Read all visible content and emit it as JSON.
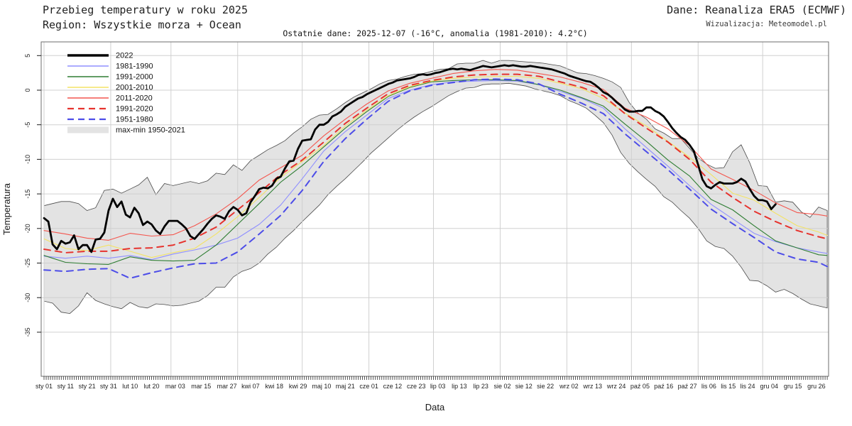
{
  "header": {
    "title": "Przebieg temperatury w roku 2025",
    "subtitle": "Region: Wszystkie morza + Ocean",
    "source": "Dane: Reanaliza ERA5 (ECMWF)",
    "credit": "Wizualizacja: Meteomodel.pl",
    "last_data_note": "Ostatnie dane: 2025-12-07 (-16°C, anomalia (1981-2010): 4.2°C)"
  },
  "chart_data": {
    "type": "line",
    "title": "Przebieg temperatury w roku 2025",
    "subtitle": "Region: Wszystkie morza + Ocean",
    "xlabel": "Data",
    "ylabel": "Temperatura",
    "ylim": [
      -41.5,
      7.0
    ],
    "grid": true,
    "legend_position": "top-left",
    "colors": {
      "grid": "#d0d0d0",
      "box": "#6e6e6e",
      "tick": "#1a1a1a",
      "band_fill": "#e3e3e3",
      "band_edge": "#4a4a4a"
    },
    "y_ticks": [
      5,
      0,
      -5,
      -10,
      -15,
      -20,
      -25,
      -30,
      -35
    ],
    "month_start_days": [
      1,
      32,
      60,
      91,
      121,
      152,
      182,
      213,
      244,
      274,
      305,
      335
    ],
    "x_ticks": [
      {
        "label": "sty 01",
        "day": 1
      },
      {
        "label": "sty 11",
        "day": 11
      },
      {
        "label": "sty 21",
        "day": 21
      },
      {
        "label": "sty 31",
        "day": 31
      },
      {
        "label": "lut 10",
        "day": 41
      },
      {
        "label": "lut 20",
        "day": 51
      },
      {
        "label": "mar 03",
        "day": 62
      },
      {
        "label": "mar 15",
        "day": 74
      },
      {
        "label": "mar 27",
        "day": 86
      },
      {
        "label": "kwi 07",
        "day": 97
      },
      {
        "label": "kwi 18",
        "day": 108
      },
      {
        "label": "kwi 29",
        "day": 119
      },
      {
        "label": "maj 10",
        "day": 130
      },
      {
        "label": "maj 21",
        "day": 141
      },
      {
        "label": "cze 01",
        "day": 152
      },
      {
        "label": "cze 12",
        "day": 163
      },
      {
        "label": "cze 23",
        "day": 174
      },
      {
        "label": "lip 03",
        "day": 184
      },
      {
        "label": "lip 13",
        "day": 194
      },
      {
        "label": "lip 23",
        "day": 204
      },
      {
        "label": "sie 02",
        "day": 214
      },
      {
        "label": "sie 12",
        "day": 224
      },
      {
        "label": "sie 22",
        "day": 234
      },
      {
        "label": "wrz 02",
        "day": 245
      },
      {
        "label": "wrz 13",
        "day": 256
      },
      {
        "label": "wrz 24",
        "day": 267
      },
      {
        "label": "paź 05",
        "day": 278
      },
      {
        "label": "paź 16",
        "day": 289
      },
      {
        "label": "paź 27",
        "day": 300
      },
      {
        "label": "lis 06",
        "day": 310
      },
      {
        "label": "lis 15",
        "day": 319
      },
      {
        "label": "lis 24",
        "day": 328
      },
      {
        "label": "gru 04",
        "day": 338
      },
      {
        "label": "gru 15",
        "day": 349
      },
      {
        "label": "gru 26",
        "day": 360
      }
    ],
    "clim_x": [
      1,
      11,
      21,
      31,
      41,
      51,
      61,
      71,
      81,
      91,
      101,
      111,
      121,
      131,
      141,
      151,
      161,
      171,
      181,
      191,
      201,
      211,
      221,
      231,
      241,
      251,
      261,
      271,
      281,
      291,
      301,
      311,
      321,
      331,
      341,
      351,
      361,
      365
    ],
    "band": {
      "name": "max-min 1950-2021",
      "x_start": 1,
      "x_step": 4,
      "upper": [
        -16.7,
        -16.4,
        -16.1,
        -16.1,
        -16.4,
        -17.4,
        -17.0,
        -14.5,
        -14.3,
        -14.9,
        -14.3,
        -13.7,
        -12.6,
        -15.1,
        -13.5,
        -13.8,
        -13.5,
        -13.2,
        -13.5,
        -13.1,
        -12.0,
        -12.2,
        -10.8,
        -11.6,
        -10.2,
        -9.4,
        -8.6,
        -8.0,
        -7.3,
        -6.2,
        -5.3,
        -4.2,
        -3.6,
        -3.5,
        -2.7,
        -1.8,
        -1.0,
        -0.4,
        0.2,
        0.9,
        1.4,
        1.6,
        2.0,
        2.3,
        2.4,
        2.7,
        3.0,
        3.1,
        3.8,
        3.9,
        3.9,
        4.3,
        3.9,
        4.3,
        4.3,
        4.2,
        4.1,
        4.0,
        3.9,
        3.7,
        3.5,
        3.0,
        2.5,
        2.4,
        2.1,
        1.7,
        1.2,
        0.4,
        -1.8,
        -3.3,
        -4.2,
        -5.6,
        -6.2,
        -7.0,
        -7.0,
        -8.4,
        -9.8,
        -10.7,
        -11.3,
        -11.2,
        -8.9,
        -7.9,
        -10.5,
        -13.8,
        -13.9,
        -16.2,
        -16.0,
        -16.2,
        -17.6,
        -18.4,
        -16.9,
        -17.4
      ],
      "lower": [
        -30.5,
        -30.8,
        -32.1,
        -32.3,
        -31.2,
        -29.3,
        -30.4,
        -30.9,
        -31.3,
        -31.6,
        -30.7,
        -31.3,
        -31.5,
        -30.9,
        -31.0,
        -31.2,
        -31.1,
        -30.8,
        -30.5,
        -29.7,
        -28.5,
        -28.5,
        -27.0,
        -26.2,
        -25.8,
        -25.0,
        -23.7,
        -22.7,
        -21.4,
        -20.3,
        -19.0,
        -17.8,
        -16.6,
        -15.1,
        -13.9,
        -12.8,
        -11.6,
        -10.4,
        -9.1,
        -8.0,
        -6.9,
        -5.8,
        -4.8,
        -3.9,
        -3.1,
        -2.4,
        -1.6,
        -0.8,
        -0.2,
        0.3,
        0.4,
        0.8,
        0.9,
        0.9,
        1.0,
        0.8,
        0.6,
        0.2,
        -0.1,
        -0.4,
        -0.8,
        -1.5,
        -2.0,
        -2.6,
        -3.6,
        -4.7,
        -6.5,
        -9.0,
        -10.6,
        -11.8,
        -12.9,
        -13.9,
        -15.4,
        -16.2,
        -17.4,
        -18.5,
        -20.0,
        -21.8,
        -22.6,
        -22.9,
        -24.0,
        -25.6,
        -27.5,
        -27.6,
        -28.3,
        -29.2,
        -28.8,
        -29.4,
        -30.2,
        -30.9,
        -31.2,
        -31.5
      ]
    },
    "series": [
      {
        "name": "1981-1990",
        "color": "#8f8fff",
        "width": 1.1,
        "dash": null,
        "use_clim_x": true,
        "values": [
          -24.0,
          -24.3,
          -24.0,
          -24.3,
          -23.9,
          -24.5,
          -23.7,
          -23.1,
          -22.4,
          -21.4,
          -19.4,
          -16.6,
          -12.8,
          -8.8,
          -6.0,
          -3.6,
          -1.2,
          0.0,
          0.8,
          1.2,
          1.3,
          1.4,
          1.3,
          0.8,
          -0.2,
          -1.2,
          -2.6,
          -5.6,
          -8.3,
          -11.0,
          -13.8,
          -16.5,
          -18.6,
          -20.7,
          -21.9,
          -22.8,
          -23.4,
          -23.6
        ]
      },
      {
        "name": "1991-2000",
        "color": "#2e7d32",
        "width": 1.1,
        "dash": null,
        "use_clim_x": true,
        "values": [
          -23.9,
          -24.9,
          -25.1,
          -25.2,
          -24.1,
          -24.6,
          -24.7,
          -24.6,
          -22.4,
          -19.4,
          -16.4,
          -13.3,
          -10.9,
          -8.2,
          -5.5,
          -3.1,
          -0.9,
          0.4,
          1.2,
          1.4,
          1.5,
          1.5,
          1.4,
          0.8,
          0.0,
          -1.1,
          -2.3,
          -4.9,
          -7.4,
          -10.1,
          -12.4,
          -15.8,
          -17.3,
          -19.6,
          -21.8,
          -22.8,
          -23.8,
          -23.9
        ]
      },
      {
        "name": "2001-2010",
        "color": "#f3e366",
        "width": 1.1,
        "dash": null,
        "use_clim_x": true,
        "values": [
          -21.5,
          -22.9,
          -23.2,
          -22.4,
          -23.3,
          -24.2,
          -23.5,
          -22.9,
          -20.8,
          -18.3,
          -15.5,
          -12.6,
          -10.3,
          -8.0,
          -5.2,
          -2.9,
          -0.8,
          0.5,
          1.3,
          1.7,
          1.9,
          2.0,
          2.0,
          1.7,
          1.0,
          0.2,
          -1.2,
          -3.3,
          -5.2,
          -7.4,
          -9.7,
          -12.2,
          -14.9,
          -15.9,
          -17.8,
          -19.6,
          -20.5,
          -21.0
        ]
      },
      {
        "name": "2011-2020",
        "color": "#f4564e",
        "width": 1.1,
        "dash": null,
        "use_clim_x": true,
        "values": [
          -20.3,
          -20.8,
          -21.4,
          -21.7,
          -20.7,
          -21.1,
          -20.9,
          -19.6,
          -17.9,
          -15.7,
          -13.0,
          -11.2,
          -9.4,
          -6.6,
          -4.2,
          -2.0,
          -0.1,
          1.0,
          1.7,
          2.4,
          2.8,
          3.0,
          2.9,
          2.4,
          1.9,
          1.1,
          0.1,
          -2.6,
          -3.9,
          -5.6,
          -8.0,
          -11.4,
          -12.9,
          -14.5,
          -16.3,
          -17.7,
          -18.0,
          -18.2
        ]
      },
      {
        "name": "1991-2020",
        "color": "#e6332e",
        "width": 2.0,
        "dash": "9 7",
        "use_clim_x": true,
        "values": [
          -23.0,
          -23.5,
          -23.3,
          -23.3,
          -22.9,
          -22.8,
          -22.4,
          -21.4,
          -19.8,
          -17.3,
          -14.8,
          -12.2,
          -10.1,
          -7.5,
          -4.8,
          -2.6,
          -0.5,
          0.7,
          1.4,
          1.9,
          2.2,
          2.3,
          2.3,
          2.0,
          1.2,
          0.4,
          -0.8,
          -3.4,
          -5.5,
          -7.5,
          -10.0,
          -13.3,
          -15.5,
          -17.5,
          -19.0,
          -20.3,
          -21.2,
          -21.5
        ]
      },
      {
        "name": "1951-1980",
        "color": "#4d4de8",
        "width": 2.0,
        "dash": "9 7",
        "use_clim_x": true,
        "values": [
          -26.0,
          -26.2,
          -25.9,
          -25.8,
          -27.2,
          -26.4,
          -25.7,
          -25.1,
          -25.0,
          -23.4,
          -20.8,
          -18.1,
          -14.5,
          -10.3,
          -7.0,
          -4.2,
          -1.6,
          -0.1,
          0.7,
          1.1,
          1.5,
          1.6,
          1.5,
          0.9,
          -0.6,
          -1.9,
          -3.4,
          -6.3,
          -8.9,
          -11.5,
          -14.3,
          -17.2,
          -19.3,
          -21.3,
          -23.4,
          -24.4,
          -24.9,
          -25.5
        ]
      },
      {
        "name": "2022",
        "color": "#000000",
        "width": 2.8,
        "dash": null,
        "x_start": 1,
        "x_step": 2,
        "values": [
          -18.5,
          -19.0,
          -22.3,
          -23.0,
          -21.8,
          -22.2,
          -22.0,
          -21.0,
          -23.0,
          -22.4,
          -22.4,
          -23.4,
          -21.6,
          -21.5,
          -20.6,
          -17.4,
          -15.7,
          -16.9,
          -16.1,
          -18.0,
          -18.4,
          -17.0,
          -17.8,
          -19.5,
          -19.0,
          -19.4,
          -20.3,
          -20.8,
          -19.7,
          -18.9,
          -18.9,
          -18.9,
          -19.4,
          -20.0,
          -21.1,
          -21.5,
          -20.8,
          -20.1,
          -19.3,
          -18.6,
          -18.1,
          -18.3,
          -18.6,
          -17.5,
          -16.9,
          -17.3,
          -18.1,
          -17.8,
          -16.2,
          -15.3,
          -14.3,
          -14.1,
          -14.2,
          -13.8,
          -12.8,
          -12.5,
          -11.3,
          -10.3,
          -10.2,
          -8.5,
          -7.3,
          -7.2,
          -7.1,
          -5.7,
          -5.0,
          -5.0,
          -4.6,
          -3.8,
          -3.5,
          -3.1,
          -2.4,
          -2.0,
          -1.6,
          -1.2,
          -1.0,
          -0.6,
          -0.3,
          0.0,
          0.3,
          0.6,
          0.9,
          1.1,
          1.4,
          1.5,
          1.6,
          1.7,
          1.9,
          2.2,
          2.3,
          2.2,
          2.3,
          2.5,
          2.6,
          2.8,
          3.0,
          3.1,
          3.0,
          3.1,
          3.0,
          2.9,
          3.1,
          3.3,
          3.5,
          3.4,
          3.3,
          3.4,
          3.5,
          3.6,
          3.5,
          3.6,
          3.5,
          3.4,
          3.4,
          3.5,
          3.4,
          3.3,
          3.2,
          3.1,
          3.0,
          2.8,
          2.6,
          2.4,
          2.1,
          1.9,
          1.7,
          1.5,
          1.3,
          1.2,
          0.8,
          0.3,
          -0.3,
          -0.6,
          -1.1,
          -1.7,
          -2.2,
          -2.8,
          -3.1,
          -3.1,
          -3.0,
          -3.0,
          -2.5,
          -2.5,
          -3.0,
          -3.3,
          -3.8,
          -4.6,
          -5.5,
          -6.2,
          -6.8,
          -7.2,
          -7.9,
          -8.8,
          -10.8,
          -12.9,
          -13.9,
          -14.2,
          -13.7,
          -13.3,
          -13.5,
          -13.5,
          -13.5,
          -13.3,
          -12.8,
          -13.2,
          -14.3,
          -15.3,
          -15.9,
          -15.9,
          -16.1,
          -17.2,
          -16.5
        ]
      }
    ],
    "legend_order": [
      "2022",
      "1981-1990",
      "1991-2000",
      "2001-2010",
      "2011-2020",
      "1991-2020",
      "1951-1980"
    ]
  }
}
